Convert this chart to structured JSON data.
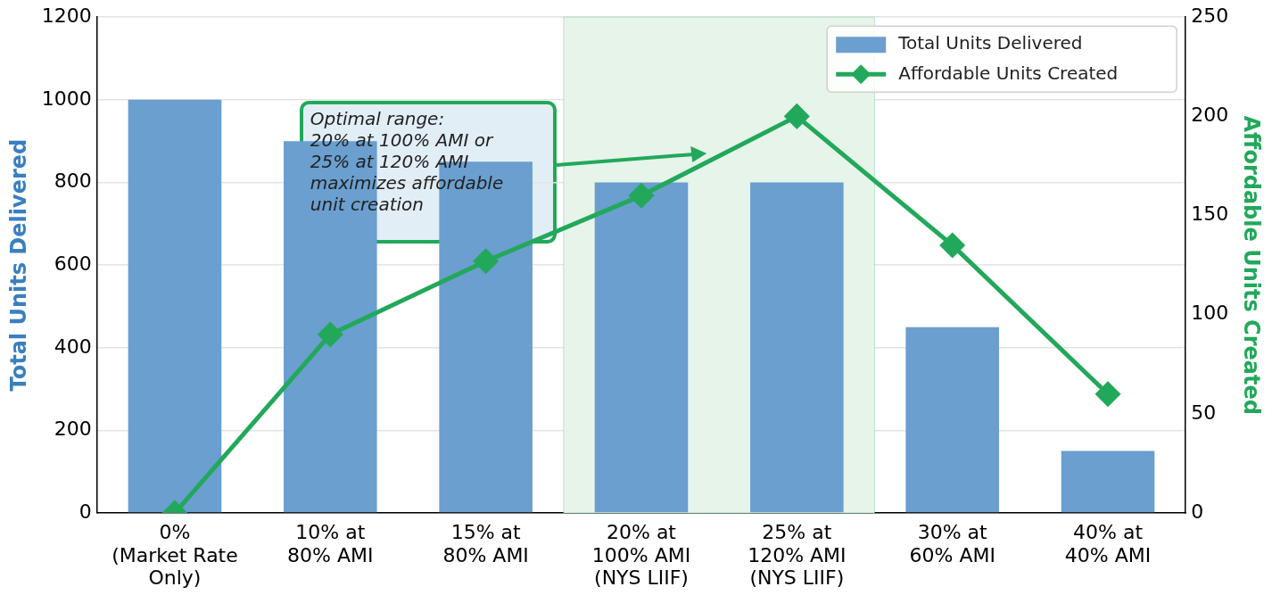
{
  "chart_data": {
    "type": "bar",
    "categories": [
      "0%\n(Market Rate\nOnly)",
      "10% at\n80% AMI",
      "15% at\n80% AMI",
      "20% at\n100% AMI\n(NYS LIIF)",
      "25% at\n120% AMI\n(NYS LIIF)",
      "30% at\n60% AMI",
      "40% at\n40% AMI"
    ],
    "series": [
      {
        "name": "Total Units Delivered",
        "type": "bar",
        "color": "#6a9fcf",
        "values": [
          1000,
          900,
          850,
          800,
          800,
          450,
          150
        ]
      },
      {
        "name": "Affordable Units Created",
        "type": "line",
        "axis": "y2",
        "color": "#22a85a",
        "values": [
          0,
          90,
          127,
          160,
          200,
          135,
          60
        ]
      }
    ],
    "ylabel": "Total Units Delivered",
    "y2label": "Affordable Units Created",
    "ylim": [
      0,
      1200
    ],
    "yticks": [
      0,
      200,
      400,
      600,
      800,
      1000,
      1200
    ],
    "y2lim": [
      0,
      250
    ],
    "y2ticks": [
      0,
      50,
      100,
      150,
      200,
      250
    ],
    "bands": [
      {
        "axis": "x",
        "from": "20% at\n100% AMI\n(NYS LIIF)",
        "to": "25% at\n120% AMI\n(NYS LIIF)",
        "color": "#e6f4ea"
      }
    ],
    "annotations": [
      "Optimal range:\n20% at 100% AMI or\n25% at 120% AMI\nmaximizes affordable\nunit creation"
    ],
    "grid": "y",
    "legend": "top right",
    "marker": "diamond",
    "line_style": "solid"
  }
}
